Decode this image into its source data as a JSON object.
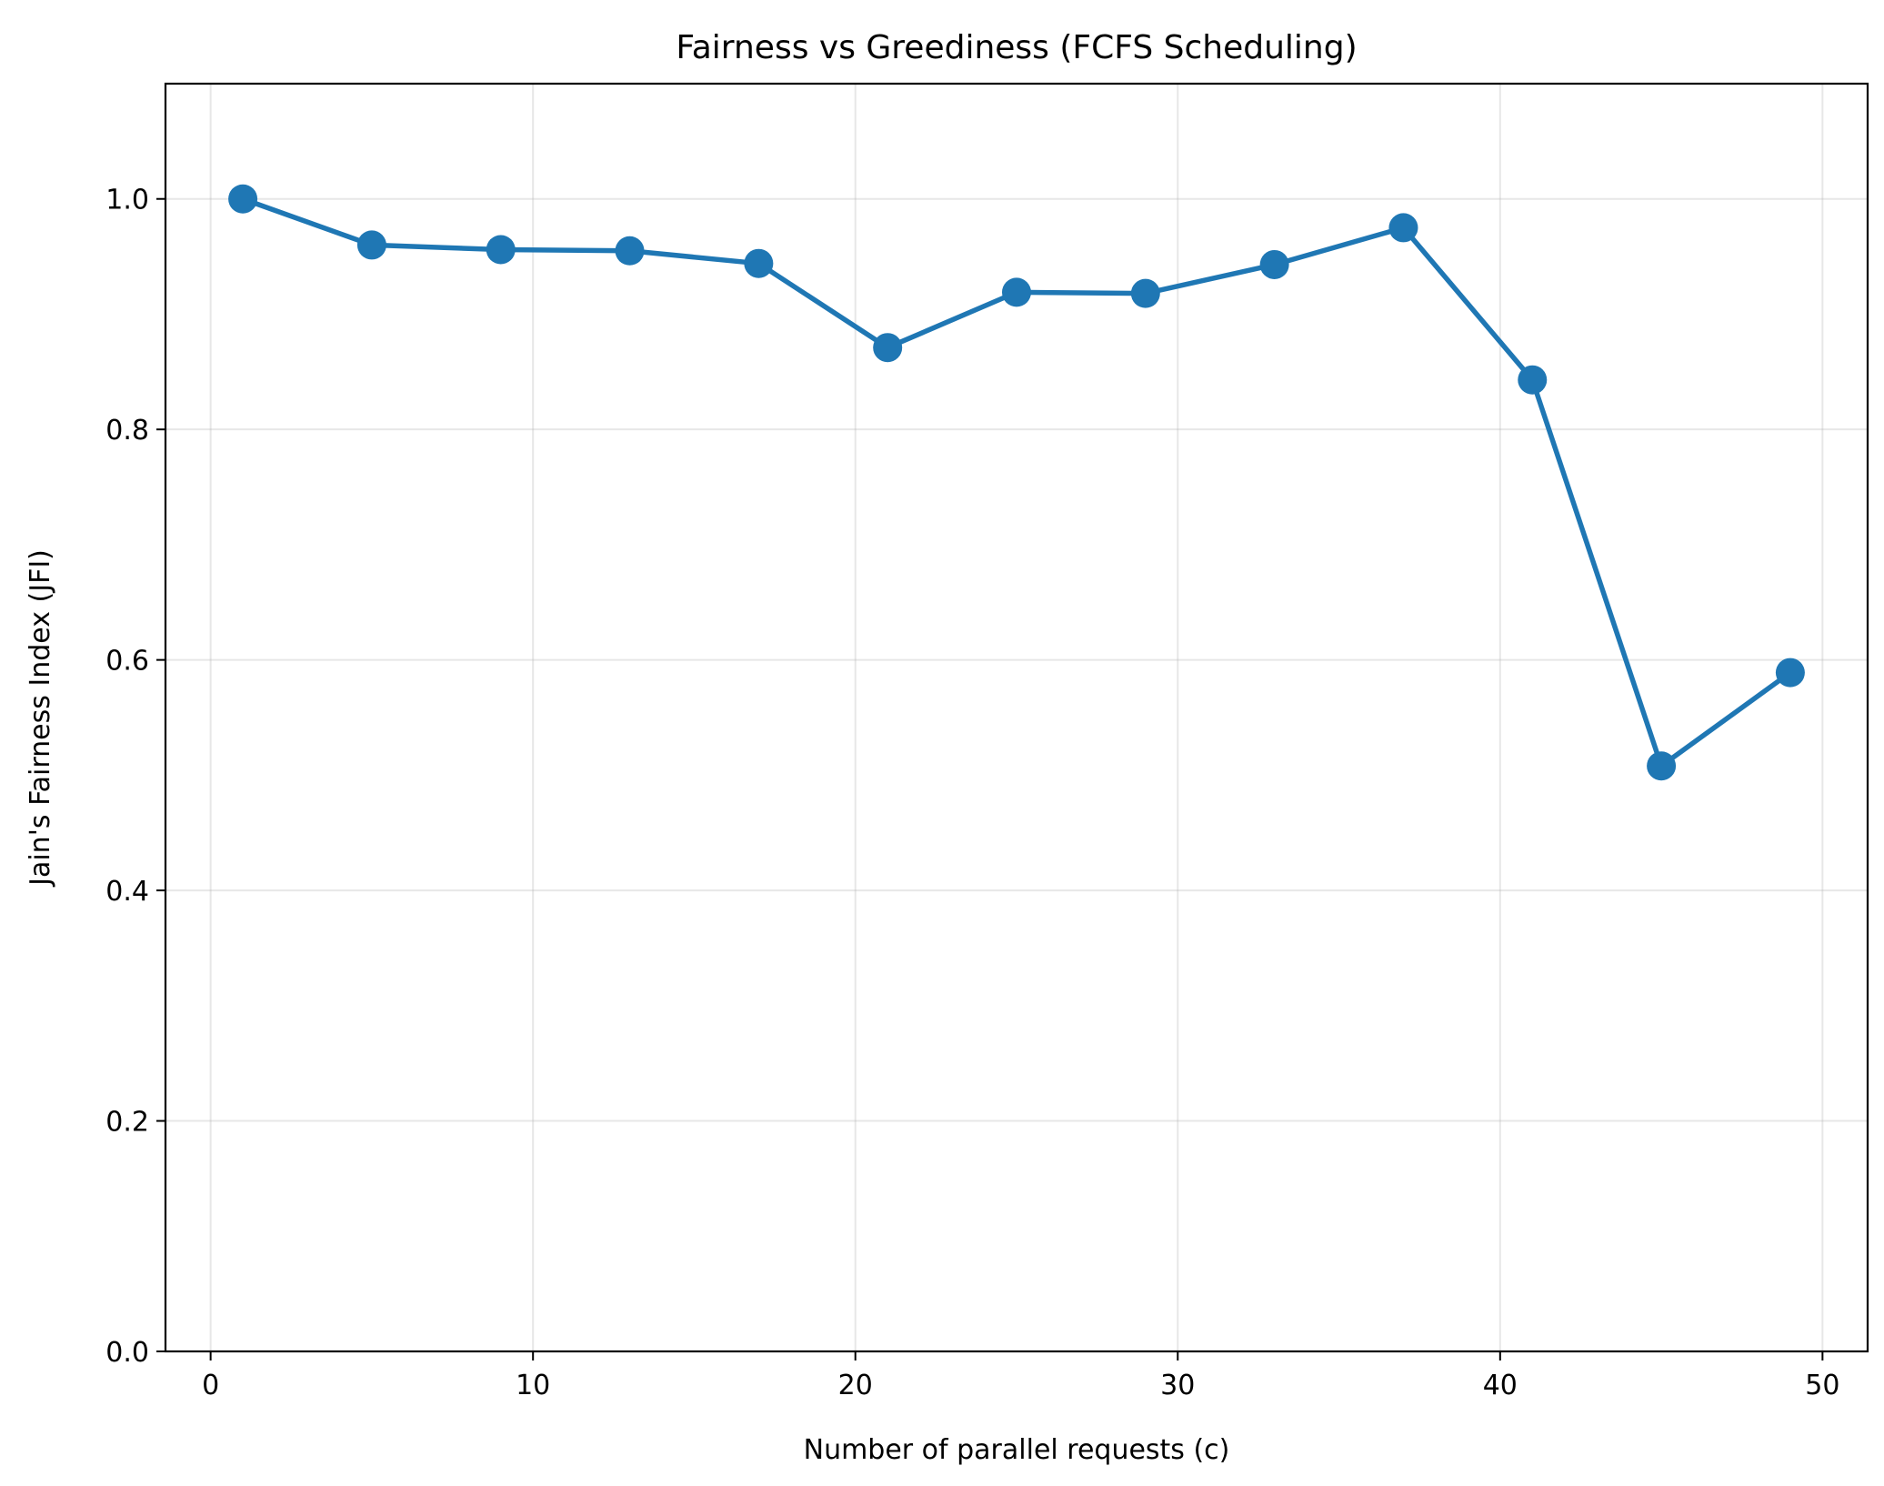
{
  "chart_data": {
    "type": "line",
    "title": "Fairness vs Greediness (FCFS Scheduling)",
    "xlabel": "Number of parallel requests (c)",
    "ylabel": "Jain's Fairness Index (JFI)",
    "xlim": [
      -1.4,
      51.4
    ],
    "ylim": [
      0.0,
      1.1
    ],
    "x_ticks": [
      0,
      10,
      20,
      30,
      40,
      50
    ],
    "y_ticks": [
      0.0,
      0.2,
      0.4,
      0.6,
      0.8,
      1.0
    ],
    "x_tick_labels": [
      "0",
      "10",
      "20",
      "30",
      "40",
      "50"
    ],
    "y_tick_labels": [
      "0.0",
      "0.2",
      "0.4",
      "0.6",
      "0.8",
      "1.0"
    ],
    "grid": true,
    "legend": "none",
    "series": [
      {
        "color": "#1f77b4",
        "marker": "circle",
        "x": [
          1,
          5,
          9,
          13,
          17,
          21,
          25,
          29,
          33,
          37,
          41,
          45,
          49
        ],
        "y": [
          1.0,
          0.96,
          0.956,
          0.955,
          0.944,
          0.871,
          0.919,
          0.918,
          0.943,
          0.975,
          0.843,
          0.508,
          0.589
        ]
      }
    ]
  }
}
